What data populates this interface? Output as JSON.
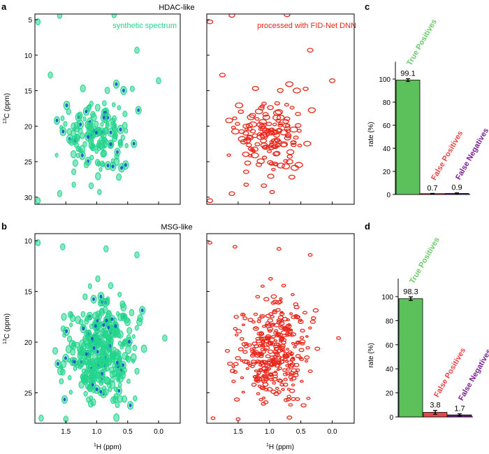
{
  "colors": {
    "synthetic": "#22d48c",
    "synthetic_dark": "#1a4fd0",
    "processed": "#e8261a",
    "tp_bar": "#5cc15a",
    "fp_bar": "#e8474a",
    "fn_bar": "#6a1d8a",
    "tp_label": "#6cc96a",
    "fp_label": "#e8474a",
    "fn_label": "#7a2090"
  },
  "panels": {
    "a": {
      "letter": "a",
      "title": "HDAC-like",
      "left_legend": "synthetic spectrum",
      "right_legend": "processed with FID-Net DNN"
    },
    "b": {
      "letter": "b",
      "title": "MSG-like"
    },
    "c": {
      "letter": "c"
    },
    "d": {
      "letter": "d"
    }
  },
  "axes": {
    "y_label_sup": "13",
    "y_label_text": "C (ppm)",
    "x_label_sup": "1",
    "x_label_text": "H (ppm)",
    "bar_y_label": "rate (%)"
  },
  "chart_data": [
    {
      "id": "spectra-a",
      "type": "scatter",
      "title": "HDAC-like",
      "xlabel": "1H (ppm)",
      "ylabel": "13C (ppm)",
      "xlim": [
        2.0,
        -0.35
      ],
      "ylim": [
        31,
        4.2
      ],
      "yticks": [
        5,
        10,
        15,
        20,
        25,
        30
      ],
      "ytick_labels": [
        "5",
        "10",
        "15",
        "20",
        "25",
        "30"
      ],
      "series": [
        {
          "name": "synthetic spectrum"
        },
        {
          "name": "processed with FID-Net DNN"
        }
      ],
      "note": "peak cloud concentrated around 1H 0.4-1.8 ppm, 13C 12-30 ppm"
    },
    {
      "id": "spectra-b",
      "type": "scatter",
      "title": "MSG-like",
      "xlabel": "1H (ppm)",
      "ylabel": "13C (ppm)",
      "xlim": [
        2.0,
        -0.35
      ],
      "ylim": [
        28,
        9.3
      ],
      "xticks": [
        1.5,
        1.0,
        0.5,
        0.0
      ],
      "xtick_labels": [
        "1.5",
        "1.0",
        "0.5",
        "0.0"
      ],
      "yticks": [
        10,
        15,
        20,
        25
      ],
      "ytick_labels": [
        "10",
        "15",
        "20",
        "25"
      ],
      "series": [
        {
          "name": "synthetic spectrum"
        },
        {
          "name": "processed with FID-Net DNN"
        }
      ],
      "note": "denser peak cloud centred around 1H 0.9 ppm, 13C 21 ppm"
    },
    {
      "id": "bars-c",
      "type": "bar",
      "ylabel": "rate (%)",
      "ylim": [
        0,
        115
      ],
      "yticks": [
        0,
        20,
        40,
        60,
        80,
        100
      ],
      "ytick_labels": [
        "0",
        "20",
        "40",
        "60",
        "80",
        "100"
      ],
      "categories": [
        "True Positives",
        "False Positives",
        "False Negatives"
      ],
      "values": [
        99.1,
        0.7,
        0.9
      ],
      "value_labels": [
        "99.1",
        "0.7",
        "0.9"
      ],
      "errors": [
        1.2,
        0.3,
        0.5
      ]
    },
    {
      "id": "bars-d",
      "type": "bar",
      "ylabel": "rate (%)",
      "ylim": [
        0,
        115
      ],
      "yticks": [
        0,
        20,
        40,
        60,
        80,
        100
      ],
      "ytick_labels": [
        "0",
        "20",
        "40",
        "60",
        "80",
        "100"
      ],
      "categories": [
        "True Positives",
        "False Positives",
        "False Negatives"
      ],
      "values": [
        98.3,
        3.8,
        1.7
      ],
      "value_labels": [
        "98.3",
        "3.8",
        "1.7"
      ],
      "errors": [
        1.5,
        1.6,
        0.9
      ]
    }
  ]
}
